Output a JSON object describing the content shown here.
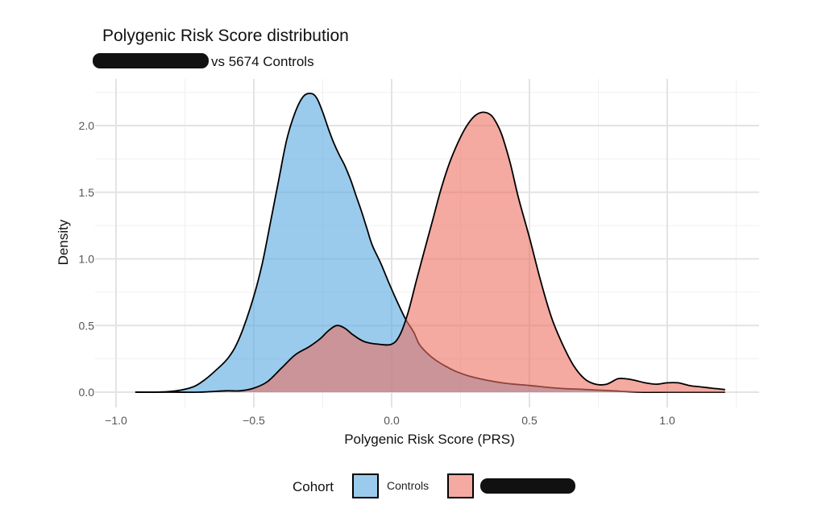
{
  "chart_data": {
    "type": "area",
    "title": "Polygenic Risk Score distribution",
    "subtitle_suffix": "vs 5674 Controls",
    "xlabel": "Polygenic Risk Score (PRS)",
    "ylabel": "Density",
    "xlim": [
      -1.0,
      1.25
    ],
    "ylim": [
      0,
      2.3
    ],
    "x_ticks": [
      -1.0,
      -0.5,
      0.0,
      0.5,
      1.0
    ],
    "x_tick_labels": [
      "−1.0",
      "−0.5",
      "0.0",
      "0.5",
      "1.0"
    ],
    "y_ticks": [
      0.0,
      0.5,
      1.0,
      1.5,
      2.0
    ],
    "y_tick_labels": [
      "0.0",
      "0.5",
      "1.0",
      "1.5",
      "2.0"
    ],
    "grid": true,
    "legend_title": "Cohort",
    "legend_position": "bottom",
    "series": [
      {
        "name": "Controls",
        "color": "#56a8e0",
        "x": [
          -0.93,
          -0.85,
          -0.78,
          -0.72,
          -0.68,
          -0.64,
          -0.6,
          -0.57,
          -0.54,
          -0.5,
          -0.47,
          -0.44,
          -0.41,
          -0.38,
          -0.35,
          -0.32,
          -0.29,
          -0.27,
          -0.25,
          -0.23,
          -0.21,
          -0.19,
          -0.17,
          -0.15,
          -0.13,
          -0.11,
          -0.09,
          -0.07,
          -0.04,
          -0.01,
          0.02,
          0.05,
          0.08,
          0.1,
          0.13,
          0.16,
          0.2,
          0.24,
          0.3,
          0.4,
          0.5,
          0.6,
          0.7,
          0.8,
          0.9,
          1.0,
          1.1,
          1.21
        ],
        "y": [
          0.0,
          0.0,
          0.01,
          0.04,
          0.09,
          0.16,
          0.24,
          0.33,
          0.47,
          0.72,
          0.96,
          1.27,
          1.59,
          1.9,
          2.1,
          2.22,
          2.24,
          2.2,
          2.1,
          1.98,
          1.87,
          1.78,
          1.7,
          1.6,
          1.48,
          1.36,
          1.23,
          1.1,
          0.97,
          0.82,
          0.68,
          0.55,
          0.45,
          0.36,
          0.29,
          0.24,
          0.19,
          0.15,
          0.11,
          0.07,
          0.05,
          0.03,
          0.02,
          0.01,
          0.0,
          0.0,
          0.0,
          0.0
        ]
      },
      {
        "name": "",
        "color": "#ec7063",
        "x": [
          -0.93,
          -0.8,
          -0.7,
          -0.6,
          -0.55,
          -0.5,
          -0.45,
          -0.4,
          -0.35,
          -0.3,
          -0.26,
          -0.23,
          -0.2,
          -0.17,
          -0.14,
          -0.1,
          -0.05,
          0.0,
          0.03,
          0.06,
          0.09,
          0.12,
          0.15,
          0.18,
          0.21,
          0.24,
          0.27,
          0.3,
          0.33,
          0.36,
          0.38,
          0.4,
          0.43,
          0.46,
          0.5,
          0.54,
          0.58,
          0.62,
          0.66,
          0.7,
          0.74,
          0.78,
          0.82,
          0.85,
          0.88,
          0.92,
          0.96,
          1.0,
          1.04,
          1.08,
          1.12,
          1.16,
          1.21
        ],
        "y": [
          0.0,
          0.0,
          0.0,
          0.01,
          0.01,
          0.03,
          0.08,
          0.18,
          0.28,
          0.34,
          0.4,
          0.46,
          0.5,
          0.48,
          0.43,
          0.38,
          0.36,
          0.36,
          0.43,
          0.6,
          0.84,
          1.07,
          1.3,
          1.53,
          1.72,
          1.87,
          1.99,
          2.07,
          2.1,
          2.08,
          2.02,
          1.93,
          1.72,
          1.46,
          1.16,
          0.84,
          0.56,
          0.36,
          0.2,
          0.1,
          0.06,
          0.06,
          0.1,
          0.1,
          0.09,
          0.07,
          0.06,
          0.07,
          0.07,
          0.05,
          0.04,
          0.03,
          0.02
        ]
      }
    ]
  }
}
